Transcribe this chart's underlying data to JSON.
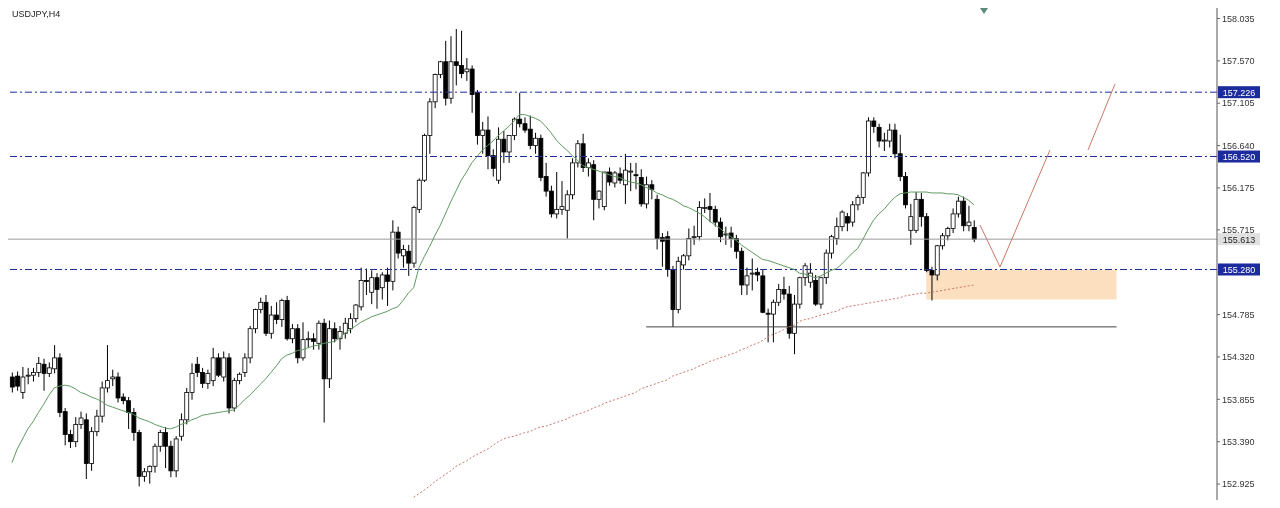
{
  "chart_data": {
    "type": "candlestick",
    "title": "USDJPY,H4",
    "color": "#000000",
    "categories": [
      null,
      null,
      null,
      null,
      null,
      null,
      null,
      null,
      null,
      null,
      null,
      null,
      null,
      null,
      null,
      null,
      null,
      null,
      null,
      null,
      null,
      null,
      null,
      null,
      null,
      null,
      null,
      null,
      null,
      null,
      null,
      null,
      null,
      null,
      null,
      null,
      null,
      null,
      null,
      null,
      null,
      null,
      null,
      null,
      null,
      null,
      null,
      null,
      null,
      null,
      null,
      null,
      null,
      null,
      null,
      null,
      null,
      null,
      null,
      null,
      null,
      null,
      null,
      null,
      null,
      null,
      null,
      null,
      null,
      null,
      null,
      null,
      null,
      null,
      null,
      null,
      null,
      null,
      null,
      null,
      null,
      null,
      null,
      null,
      null,
      null,
      null,
      null,
      null,
      null,
      null,
      null,
      null,
      null,
      null,
      null,
      null,
      null,
      null,
      null,
      null,
      null,
      null,
      null,
      null,
      null,
      null,
      null,
      null,
      null,
      null,
      null,
      null,
      null,
      null,
      null,
      null,
      null,
      null,
      null,
      null,
      null,
      null,
      null,
      null,
      null,
      null,
      null,
      null,
      null,
      null,
      null,
      null,
      null,
      null,
      null,
      null,
      null,
      null,
      null,
      null,
      null,
      null,
      null,
      null,
      null,
      null,
      null,
      null,
      null,
      null,
      null,
      null,
      null,
      null,
      null,
      null,
      null,
      null,
      null,
      null,
      null,
      null,
      null,
      null,
      null,
      null,
      null,
      null,
      null,
      null,
      null,
      null,
      null,
      null,
      null,
      null,
      null,
      null,
      null,
      null,
      null,
      null
    ],
    "ohlc": [
      [
        154.1,
        154.15,
        153.93,
        153.99
      ],
      [
        154.11,
        154.16,
        153.95,
        154.0
      ],
      [
        153.93,
        154.21,
        153.86,
        154.1
      ],
      [
        154.11,
        154.2,
        154.02,
        154.12
      ],
      [
        154.12,
        154.2,
        154.05,
        154.15
      ],
      [
        154.15,
        154.32,
        154.1,
        154.25
      ],
      [
        154.24,
        154.3,
        153.95,
        154.14
      ],
      [
        154.14,
        154.26,
        154.1,
        154.2
      ],
      [
        154.19,
        154.45,
        154.14,
        154.31
      ],
      [
        154.31,
        154.36,
        153.66,
        153.71
      ],
      [
        153.72,
        153.76,
        153.35,
        153.47
      ],
      [
        153.47,
        153.52,
        153.32,
        153.39
      ],
      [
        153.39,
        153.66,
        153.33,
        153.58
      ],
      [
        153.58,
        153.72,
        153.53,
        153.65
      ],
      [
        153.63,
        153.7,
        152.98,
        153.15
      ],
      [
        153.15,
        153.55,
        153.07,
        153.5
      ],
      [
        153.5,
        153.74,
        153.45,
        153.67
      ],
      [
        153.67,
        154.05,
        153.6,
        153.98
      ],
      [
        153.98,
        154.45,
        153.93,
        154.06
      ],
      [
        154.08,
        154.18,
        154.0,
        154.1
      ],
      [
        154.1,
        154.15,
        153.82,
        153.87
      ],
      [
        153.88,
        153.92,
        153.8,
        153.84
      ],
      [
        153.84,
        153.88,
        153.53,
        153.71
      ],
      [
        153.71,
        153.76,
        153.4,
        153.49
      ],
      [
        153.49,
        153.52,
        152.9,
        153.01
      ],
      [
        153.01,
        153.1,
        152.95,
        153.06
      ],
      [
        153.06,
        153.13,
        152.93,
        153.12
      ],
      [
        153.12,
        153.37,
        153.05,
        153.34
      ],
      [
        153.34,
        153.52,
        153.28,
        153.49
      ],
      [
        153.49,
        153.55,
        153.1,
        153.34
      ],
      [
        153.34,
        153.4,
        153.0,
        153.07
      ],
      [
        153.07,
        153.45,
        153.0,
        153.42
      ],
      [
        153.45,
        153.7,
        153.4,
        153.63
      ],
      [
        153.63,
        153.98,
        153.58,
        153.93
      ],
      [
        153.93,
        154.25,
        153.85,
        154.14
      ],
      [
        154.24,
        154.32,
        154.1,
        154.15
      ],
      [
        154.15,
        154.2,
        153.98,
        154.03
      ],
      [
        154.03,
        154.18,
        153.97,
        154.14
      ],
      [
        154.06,
        154.42,
        154.0,
        154.31
      ],
      [
        154.31,
        154.36,
        154.1,
        154.12
      ],
      [
        154.1,
        154.38,
        154.05,
        154.31
      ],
      [
        154.31,
        154.36,
        153.7,
        153.76
      ],
      [
        153.76,
        154.09,
        153.72,
        154.06
      ],
      [
        154.06,
        154.15,
        154.02,
        154.13
      ],
      [
        154.15,
        154.36,
        154.1,
        154.31
      ],
      [
        154.31,
        154.66,
        154.25,
        154.63
      ],
      [
        154.63,
        154.85,
        154.58,
        154.84
      ],
      [
        154.84,
        154.97,
        154.8,
        154.92
      ],
      [
        154.92,
        155.0,
        154.55,
        154.58
      ],
      [
        154.58,
        154.88,
        154.52,
        154.78
      ],
      [
        154.78,
        154.92,
        154.68,
        154.73
      ],
      [
        154.73,
        154.96,
        154.65,
        154.94
      ],
      [
        154.94,
        154.99,
        154.5,
        154.52
      ],
      [
        154.52,
        154.68,
        154.47,
        154.63
      ],
      [
        154.63,
        154.68,
        154.25,
        154.31
      ],
      [
        154.31,
        154.7,
        154.28,
        154.51
      ],
      [
        154.51,
        154.6,
        154.42,
        154.52
      ],
      [
        154.52,
        154.58,
        154.4,
        154.49
      ],
      [
        154.47,
        154.72,
        154.4,
        154.69
      ],
      [
        154.69,
        154.74,
        153.6,
        154.08
      ],
      [
        154.08,
        154.72,
        153.98,
        154.63
      ],
      [
        154.63,
        154.7,
        154.48,
        154.52
      ],
      [
        154.52,
        154.66,
        154.4,
        154.6
      ],
      [
        154.58,
        154.75,
        154.52,
        154.69
      ],
      [
        154.63,
        154.8,
        154.58,
        154.74
      ],
      [
        154.74,
        154.9,
        154.7,
        154.89
      ],
      [
        154.87,
        155.3,
        154.83,
        155.16
      ],
      [
        155.16,
        155.29,
        155.0,
        155.15
      ],
      [
        155.03,
        155.27,
        154.9,
        155.19
      ],
      [
        155.19,
        155.24,
        154.85,
        155.06
      ],
      [
        155.08,
        155.25,
        154.95,
        155.22
      ],
      [
        155.22,
        155.3,
        154.88,
        155.15
      ],
      [
        155.15,
        155.82,
        155.05,
        155.69
      ],
      [
        155.69,
        155.75,
        155.4,
        155.46
      ],
      [
        155.43,
        155.55,
        155.3,
        155.5
      ],
      [
        155.48,
        155.55,
        155.21,
        155.35
      ],
      [
        155.35,
        155.98,
        155.3,
        155.96
      ],
      [
        155.94,
        156.28,
        155.9,
        156.26
      ],
      [
        156.26,
        156.77,
        156.24,
        156.75
      ],
      [
        156.75,
        157.16,
        156.55,
        157.12
      ],
      [
        157.12,
        157.43,
        157.05,
        157.42
      ],
      [
        157.42,
        157.57,
        157.38,
        157.56
      ],
      [
        157.56,
        157.79,
        157.08,
        157.16
      ],
      [
        157.16,
        157.84,
        157.1,
        157.56
      ],
      [
        157.56,
        157.92,
        157.3,
        157.52
      ],
      [
        157.52,
        157.9,
        157.38,
        157.43
      ],
      [
        157.45,
        157.6,
        157.35,
        157.48
      ],
      [
        157.48,
        157.52,
        157.0,
        157.2
      ],
      [
        157.22,
        157.25,
        156.65,
        156.75
      ],
      [
        156.75,
        156.9,
        156.55,
        156.81
      ],
      [
        156.81,
        156.96,
        156.38,
        156.53
      ],
      [
        156.53,
        156.6,
        156.3,
        156.39
      ],
      [
        156.26,
        156.84,
        156.22,
        156.71
      ],
      [
        156.71,
        156.8,
        156.45,
        156.57
      ],
      [
        156.57,
        156.75,
        156.45,
        156.75
      ],
      [
        156.75,
        156.95,
        156.7,
        156.93
      ],
      [
        156.93,
        157.22,
        156.84,
        156.88
      ],
      [
        156.88,
        156.95,
        156.78,
        156.81
      ],
      [
        156.82,
        156.97,
        156.6,
        156.64
      ],
      [
        156.64,
        156.78,
        156.55,
        156.72
      ],
      [
        156.72,
        156.76,
        156.25,
        156.29
      ],
      [
        156.3,
        156.45,
        156.08,
        156.14
      ],
      [
        156.14,
        156.2,
        155.85,
        155.89
      ],
      [
        155.89,
        156.35,
        155.84,
        155.94
      ],
      [
        155.94,
        156.25,
        155.88,
        155.97
      ],
      [
        155.93,
        156.15,
        155.62,
        156.1
      ],
      [
        156.1,
        156.5,
        156.05,
        156.45
      ],
      [
        156.45,
        156.7,
        156.4,
        156.66
      ],
      [
        156.66,
        156.77,
        156.35,
        156.4
      ],
      [
        156.4,
        156.5,
        156.3,
        156.45
      ],
      [
        156.43,
        156.48,
        155.82,
        156.05
      ],
      [
        156.05,
        156.15,
        155.95,
        156.14
      ],
      [
        155.97,
        156.35,
        155.93,
        156.35
      ],
      [
        156.35,
        156.4,
        156.2,
        156.24
      ],
      [
        156.23,
        156.36,
        156.18,
        156.34
      ],
      [
        156.33,
        156.4,
        156.22,
        156.26
      ],
      [
        156.21,
        156.55,
        156.0,
        156.37
      ],
      [
        156.36,
        156.45,
        156.14,
        156.36
      ],
      [
        156.32,
        156.45,
        156.16,
        156.31
      ],
      [
        156.29,
        156.38,
        155.97,
        156.0
      ],
      [
        156.0,
        156.3,
        155.95,
        156.21
      ],
      [
        156.21,
        156.26,
        156.05,
        156.16
      ],
      [
        156.05,
        156.1,
        155.5,
        155.62
      ],
      [
        155.63,
        155.68,
        155.31,
        155.59
      ],
      [
        155.64,
        155.7,
        155.2,
        155.28
      ],
      [
        155.28,
        155.32,
        154.65,
        154.84
      ],
      [
        154.84,
        155.42,
        154.8,
        155.37
      ],
      [
        155.33,
        155.45,
        155.28,
        155.43
      ],
      [
        155.43,
        155.73,
        155.38,
        155.62
      ],
      [
        155.64,
        155.76,
        155.55,
        155.64
      ],
      [
        155.64,
        156.03,
        155.6,
        155.96
      ],
      [
        155.96,
        156.06,
        155.9,
        155.96
      ],
      [
        155.97,
        156.12,
        155.8,
        155.94
      ],
      [
        155.94,
        155.98,
        155.75,
        155.8
      ],
      [
        155.8,
        155.85,
        155.58,
        155.64
      ],
      [
        155.67,
        155.75,
        155.55,
        155.67
      ],
      [
        155.68,
        155.75,
        155.52,
        155.62
      ],
      [
        155.62,
        155.66,
        155.4,
        155.48
      ],
      [
        155.48,
        155.52,
        155.0,
        155.11
      ],
      [
        155.11,
        155.3,
        155.0,
        155.21
      ],
      [
        155.24,
        155.4,
        155.05,
        155.24
      ],
      [
        155.25,
        155.3,
        155.15,
        155.22
      ],
      [
        155.21,
        155.28,
        154.8,
        154.81
      ],
      [
        154.8,
        154.85,
        154.48,
        154.79
      ],
      [
        154.79,
        154.95,
        154.48,
        154.92
      ],
      [
        154.92,
        155.12,
        154.88,
        155.06
      ],
      [
        155.06,
        155.2,
        154.95,
        155.01
      ],
      [
        155.01,
        155.1,
        154.52,
        154.58
      ],
      [
        154.58,
        155.0,
        154.35,
        154.9
      ],
      [
        154.9,
        155.2,
        154.85,
        155.19
      ],
      [
        155.19,
        155.35,
        155.1,
        155.32
      ],
      [
        155.14,
        155.35,
        155.08,
        155.24
      ],
      [
        155.16,
        155.22,
        154.88,
        154.9
      ],
      [
        154.9,
        155.2,
        154.85,
        155.19
      ],
      [
        155.19,
        155.5,
        155.12,
        155.46
      ],
      [
        155.46,
        155.66,
        155.4,
        155.64
      ],
      [
        155.62,
        155.85,
        155.55,
        155.75
      ],
      [
        155.75,
        155.93,
        155.7,
        155.91
      ],
      [
        155.86,
        155.9,
        155.7,
        155.79
      ],
      [
        155.8,
        156.03,
        155.75,
        155.99
      ],
      [
        155.99,
        156.1,
        155.93,
        156.07
      ],
      [
        156.07,
        156.35,
        156.0,
        156.34
      ],
      [
        156.34,
        156.95,
        156.3,
        156.91
      ],
      [
        156.91,
        156.95,
        156.78,
        156.85
      ],
      [
        156.84,
        156.88,
        156.62,
        156.69
      ],
      [
        156.7,
        156.78,
        156.58,
        156.7
      ],
      [
        156.69,
        156.88,
        156.62,
        156.81
      ],
      [
        156.81,
        156.88,
        156.5,
        156.55
      ],
      [
        156.55,
        156.76,
        156.25,
        156.3
      ],
      [
        156.3,
        156.35,
        155.95,
        155.99
      ],
      [
        155.71,
        156.0,
        155.55,
        155.86
      ],
      [
        155.71,
        156.13,
        155.68,
        156.05
      ],
      [
        156.05,
        156.12,
        155.75,
        155.86
      ],
      [
        155.86,
        155.9,
        155.25,
        155.27
      ],
      [
        155.27,
        155.31,
        154.94,
        155.22
      ],
      [
        155.22,
        155.55,
        155.16,
        155.54
      ],
      [
        155.54,
        155.68,
        155.5,
        155.65
      ],
      [
        155.65,
        155.75,
        155.6,
        155.73
      ],
      [
        155.73,
        155.95,
        155.68,
        155.89
      ],
      [
        155.89,
        156.08,
        155.85,
        156.03
      ],
      [
        156.03,
        156.08,
        155.7,
        155.76
      ],
      [
        155.76,
        155.98,
        155.7,
        155.8
      ],
      [
        155.74,
        155.82,
        155.58,
        155.613
      ]
    ],
    "series": [
      {
        "type": "line",
        "color": "#5f9a5f",
        "line_style": "solid",
        "values": [
          153.16,
          153.31,
          153.42,
          153.53,
          153.61,
          153.71,
          153.8,
          153.9,
          153.98,
          154.0,
          154.01,
          154.0,
          153.97,
          153.93,
          153.91,
          153.88,
          153.86,
          153.83,
          153.79,
          153.77,
          153.75,
          153.73,
          153.71,
          153.69,
          153.65,
          153.63,
          153.61,
          153.58,
          153.56,
          153.54,
          153.53,
          153.55,
          153.58,
          153.6,
          153.63,
          153.65,
          153.68,
          153.69,
          153.7,
          153.71,
          153.72,
          153.73,
          153.74,
          153.79,
          153.85,
          153.9,
          153.96,
          154.02,
          154.08,
          154.15,
          154.22,
          154.3,
          154.34,
          154.36,
          154.39,
          154.4,
          154.42,
          154.44,
          154.45,
          154.47,
          154.48,
          154.49,
          154.53,
          154.58,
          154.62,
          154.66,
          154.7,
          154.73,
          154.76,
          154.78,
          154.8,
          154.82,
          154.85,
          154.87,
          154.94,
          155.02,
          155.08,
          155.3,
          155.42,
          155.53,
          155.65,
          155.76,
          155.89,
          156.02,
          156.14,
          156.26,
          156.35,
          156.45,
          156.52,
          156.59,
          156.64,
          156.69,
          156.75,
          156.8,
          156.85,
          156.91,
          156.98,
          156.98,
          156.96,
          156.94,
          156.91,
          156.85,
          156.78,
          156.7,
          156.64,
          156.59,
          156.53,
          156.48,
          156.42,
          156.4,
          156.38,
          156.36,
          156.34,
          156.32,
          156.3,
          156.29,
          156.26,
          156.24,
          156.23,
          156.21,
          156.18,
          156.16,
          156.12,
          156.1,
          156.07,
          156.05,
          156.02,
          155.98,
          155.96,
          155.93,
          155.9,
          155.86,
          155.81,
          155.77,
          155.73,
          155.68,
          155.64,
          155.6,
          155.55,
          155.51,
          155.47,
          155.43,
          155.39,
          155.38,
          155.36,
          155.34,
          155.32,
          155.3,
          155.28,
          155.24,
          155.23,
          155.21,
          155.19,
          155.21,
          155.24,
          155.27,
          155.29,
          155.34,
          155.4,
          155.46,
          155.51,
          155.61,
          155.72,
          155.82,
          155.89,
          155.94,
          156.01,
          156.07,
          156.11,
          156.12,
          156.13,
          156.13,
          156.13,
          156.13,
          156.12,
          156.12,
          156.12,
          156.11,
          156.11,
          156.1,
          156.07,
          156.04,
          155.99
        ]
      },
      {
        "type": "line",
        "color": "#c87868",
        "line_style": "dotted",
        "values": [
          null,
          null,
          null,
          null,
          null,
          null,
          null,
          null,
          null,
          null,
          null,
          null,
          null,
          null,
          null,
          null,
          null,
          null,
          null,
          null,
          null,
          null,
          null,
          null,
          null,
          null,
          null,
          null,
          null,
          null,
          null,
          null,
          null,
          null,
          null,
          null,
          null,
          null,
          null,
          null,
          null,
          null,
          null,
          null,
          null,
          null,
          null,
          null,
          null,
          null,
          null,
          null,
          null,
          null,
          null,
          null,
          null,
          null,
          null,
          null,
          null,
          null,
          null,
          null,
          null,
          null,
          null,
          null,
          null,
          null,
          null,
          null,
          null,
          null,
          null,
          null,
          152.78,
          152.82,
          152.86,
          152.9,
          152.95,
          152.99,
          153.03,
          153.07,
          153.12,
          153.15,
          153.18,
          153.22,
          153.25,
          153.28,
          153.31,
          153.35,
          153.39,
          153.42,
          153.44,
          153.45,
          153.47,
          153.49,
          153.5,
          153.53,
          153.55,
          153.56,
          153.58,
          153.6,
          153.62,
          153.64,
          153.67,
          153.69,
          153.71,
          153.73,
          153.76,
          153.78,
          153.81,
          153.83,
          153.85,
          153.87,
          153.89,
          153.91,
          153.93,
          153.97,
          153.99,
          154.01,
          154.03,
          154.05,
          154.07,
          154.11,
          154.13,
          154.15,
          154.17,
          154.19,
          154.22,
          154.24,
          154.27,
          154.29,
          154.31,
          154.33,
          154.35,
          154.37,
          154.4,
          154.42,
          154.45,
          154.47,
          154.5,
          154.54,
          154.57,
          154.59,
          154.62,
          154.65,
          154.67,
          154.71,
          154.73,
          154.74,
          154.76,
          154.78,
          154.79,
          154.81,
          154.82,
          154.85,
          154.87,
          154.88,
          154.89,
          154.9,
          154.91,
          154.92,
          154.93,
          154.94,
          154.95,
          154.96,
          154.97,
          154.99,
          155.0,
          155.01,
          155.02,
          155.02,
          155.03,
          155.04,
          155.05,
          155.06,
          155.07,
          155.08,
          155.09,
          155.1,
          155.11
        ]
      }
    ],
    "ylim": [
      152.75,
      158.15
    ],
    "yticks": [
      152.925,
      {
        "value": 153.39,
        "label": "153.390"
      },
      153.855,
      {
        "value": 154.32,
        "label": "154.320"
      },
      154.785,
      155.715,
      156.175,
      {
        "value": 156.64,
        "label": "156.640"
      },
      157.105,
      {
        "value": 157.57,
        "label": "157.570"
      },
      158.035
    ],
    "ref_lines": [
      {
        "axis": "y",
        "value": 157.226,
        "label": "157.226",
        "color": "#1c2c9c",
        "line_style": "dashed"
      },
      {
        "axis": "y",
        "value": 156.52,
        "label": "156.520",
        "color": "#1c2c9c",
        "line_style": "dashed"
      },
      {
        "axis": "y",
        "value": 155.613,
        "label": "155.613",
        "color": "#9a9a9a",
        "line_style": "solid"
      },
      {
        "axis": "y",
        "value": 155.28,
        "label": "155.280",
        "color": "#1c2c9c",
        "line_style": "dashed"
      },
      {
        "axis": "y",
        "value": 154.65,
        "color": "#444444",
        "line_style": "solid"
      }
    ],
    "bands": [
      {
        "axis": "y",
        "from": 154.95,
        "to": 155.28,
        "color": "#fbdcb8"
      }
    ],
    "tick_labels": "y",
    "grid": false,
    "marker": "none"
  }
}
